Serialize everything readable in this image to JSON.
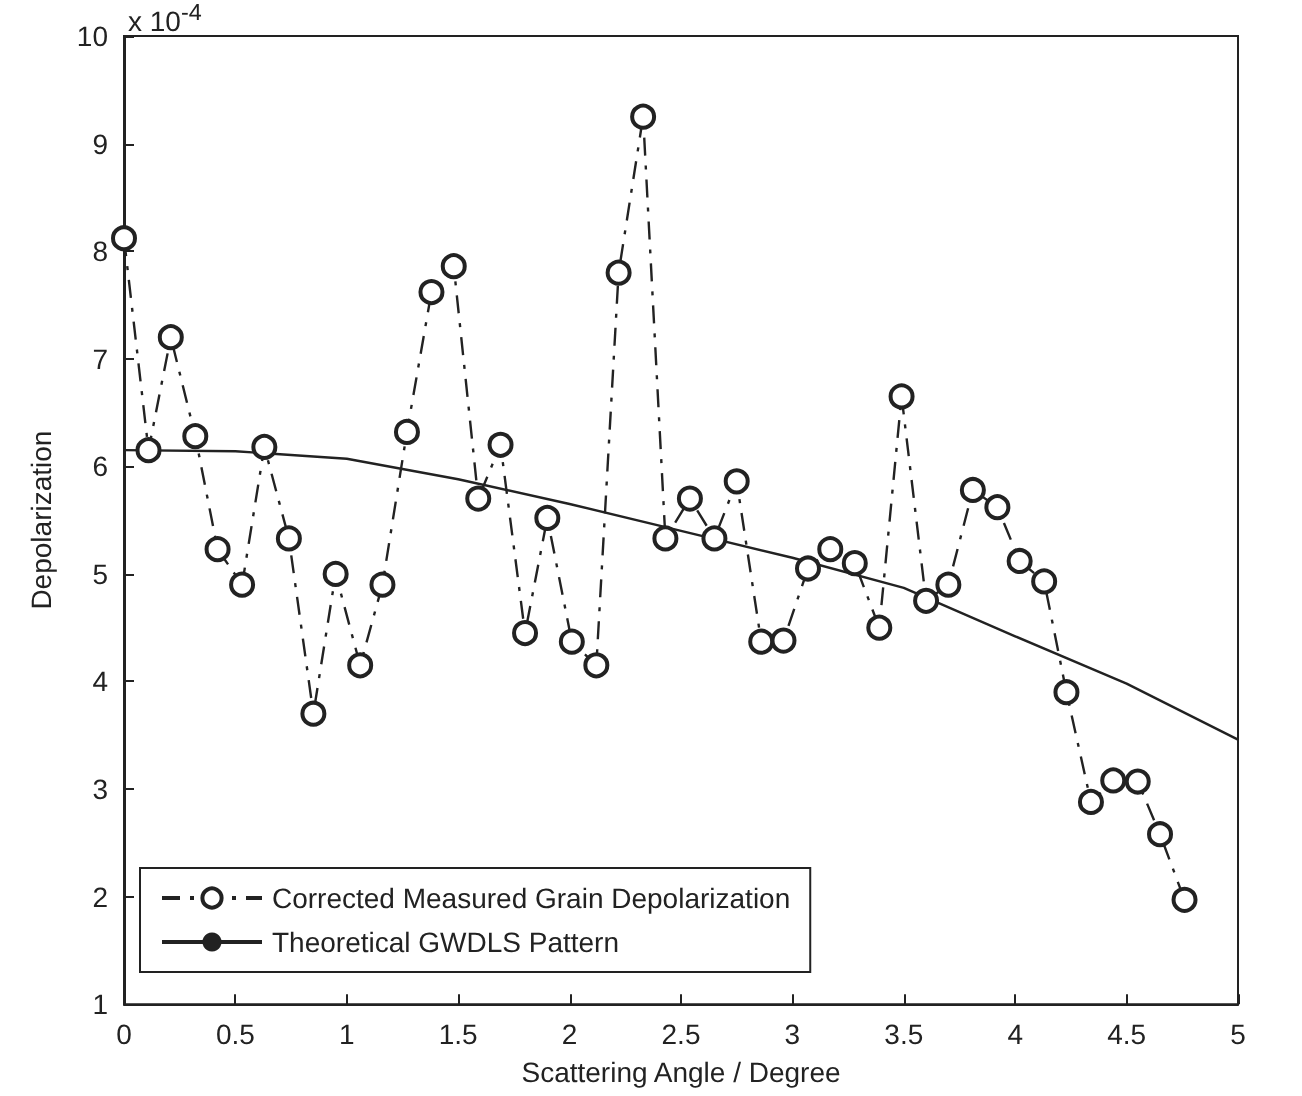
{
  "chart_data": {
    "type": "line",
    "xlabel": "Scattering Angle / Degree",
    "ylabel": "Depolarization",
    "annotations": [
      "x 10$^{-4}$"
    ],
    "xlim": [
      0,
      5
    ],
    "xticks": [
      0,
      0.5,
      1,
      1.5,
      2,
      2.5,
      3,
      3.5,
      4,
      4.5,
      5
    ],
    "ylim": [
      1,
      10
    ],
    "yticks": [
      1,
      2,
      3,
      4,
      5,
      6,
      7,
      8,
      9,
      10
    ],
    "grid": false,
    "legend": "bottom left",
    "series": [
      {
        "name": "Corrected Measured Grain Depolarization",
        "color": "#222222",
        "marker": "circle",
        "line_style": "dashed",
        "x": [
          0,
          0.11,
          0.21,
          0.32,
          0.42,
          0.53,
          0.63,
          0.74,
          0.85,
          0.95,
          1.06,
          1.16,
          1.27,
          1.38,
          1.48,
          1.59,
          1.69,
          1.8,
          1.9,
          2.01,
          2.12,
          2.22,
          2.33,
          2.43,
          2.54,
          2.65,
          2.75,
          2.86,
          2.96,
          3.07,
          3.17,
          3.28,
          3.39,
          3.49,
          3.6,
          3.7,
          3.81,
          3.92,
          4.02,
          4.13,
          4.23,
          4.34,
          4.44,
          4.55,
          4.65,
          4.76
        ],
        "values": [
          8.12,
          6.15,
          7.2,
          6.28,
          5.23,
          4.9,
          6.18,
          5.33,
          3.7,
          5.0,
          4.15,
          4.9,
          6.32,
          7.62,
          7.86,
          5.7,
          6.2,
          4.45,
          5.52,
          4.37,
          4.15,
          7.8,
          9.25,
          5.33,
          5.7,
          5.33,
          5.86,
          4.37,
          4.38,
          5.05,
          5.23,
          5.1,
          4.5,
          6.65,
          4.75,
          4.9,
          5.78,
          5.62,
          5.12,
          4.93,
          3.9,
          2.88,
          3.08,
          3.07,
          2.58,
          1.97
        ]
      },
      {
        "name": "Theoretical GWDLS Pattern",
        "color": "#222222",
        "marker": "none",
        "line_style": "solid",
        "x": [
          0,
          0.5,
          1,
          1.5,
          2,
          2.5,
          3,
          3.5,
          4,
          4.5,
          5
        ],
        "values": [
          6.15,
          6.14,
          6.07,
          5.88,
          5.65,
          5.4,
          5.15,
          4.87,
          4.42,
          3.98,
          3.46
        ]
      }
    ]
  }
}
